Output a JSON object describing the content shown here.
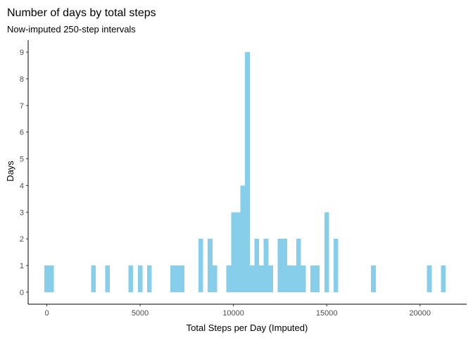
{
  "chart_data": {
    "type": "bar",
    "title": "Number of days by total steps",
    "subtitle": "Now-imputed 250-step intervals",
    "xlabel": "Total Steps per Day (Imputed)",
    "ylabel": "Days",
    "bin_width": 250,
    "xlim": [
      -1000,
      22500
    ],
    "ylim": [
      -0.45,
      9.45
    ],
    "x_ticks": [
      0,
      5000,
      10000,
      15000,
      20000
    ],
    "x_tick_labels": [
      "0",
      "5000",
      "10000",
      "15000",
      "20000"
    ],
    "y_ticks": [
      0,
      1,
      2,
      3,
      4,
      5,
      6,
      7,
      8,
      9
    ],
    "y_tick_labels": [
      "0",
      "1",
      "2",
      "3",
      "4",
      "5",
      "6",
      "7",
      "8",
      "9"
    ],
    "bar_color": "#87CEEB",
    "grid": false,
    "bins": [
      {
        "x": 0,
        "count": 1
      },
      {
        "x": 250,
        "count": 1
      },
      {
        "x": 2500,
        "count": 1
      },
      {
        "x": 3250,
        "count": 1
      },
      {
        "x": 4500,
        "count": 1
      },
      {
        "x": 5000,
        "count": 1
      },
      {
        "x": 5500,
        "count": 1
      },
      {
        "x": 6750,
        "count": 1
      },
      {
        "x": 7000,
        "count": 1
      },
      {
        "x": 7250,
        "count": 1
      },
      {
        "x": 8250,
        "count": 2
      },
      {
        "x": 8750,
        "count": 2
      },
      {
        "x": 9000,
        "count": 1
      },
      {
        "x": 9750,
        "count": 1
      },
      {
        "x": 10000,
        "count": 3
      },
      {
        "x": 10250,
        "count": 3
      },
      {
        "x": 10500,
        "count": 4
      },
      {
        "x": 10750,
        "count": 9
      },
      {
        "x": 11000,
        "count": 1
      },
      {
        "x": 11250,
        "count": 2
      },
      {
        "x": 11500,
        "count": 1
      },
      {
        "x": 11750,
        "count": 2
      },
      {
        "x": 12000,
        "count": 1
      },
      {
        "x": 12500,
        "count": 2
      },
      {
        "x": 12750,
        "count": 2
      },
      {
        "x": 13000,
        "count": 1
      },
      {
        "x": 13250,
        "count": 1
      },
      {
        "x": 13500,
        "count": 2
      },
      {
        "x": 13750,
        "count": 1
      },
      {
        "x": 14250,
        "count": 1
      },
      {
        "x": 14500,
        "count": 1
      },
      {
        "x": 15000,
        "count": 3
      },
      {
        "x": 15500,
        "count": 2
      },
      {
        "x": 17500,
        "count": 1
      },
      {
        "x": 20500,
        "count": 1
      },
      {
        "x": 21250,
        "count": 1
      }
    ]
  }
}
